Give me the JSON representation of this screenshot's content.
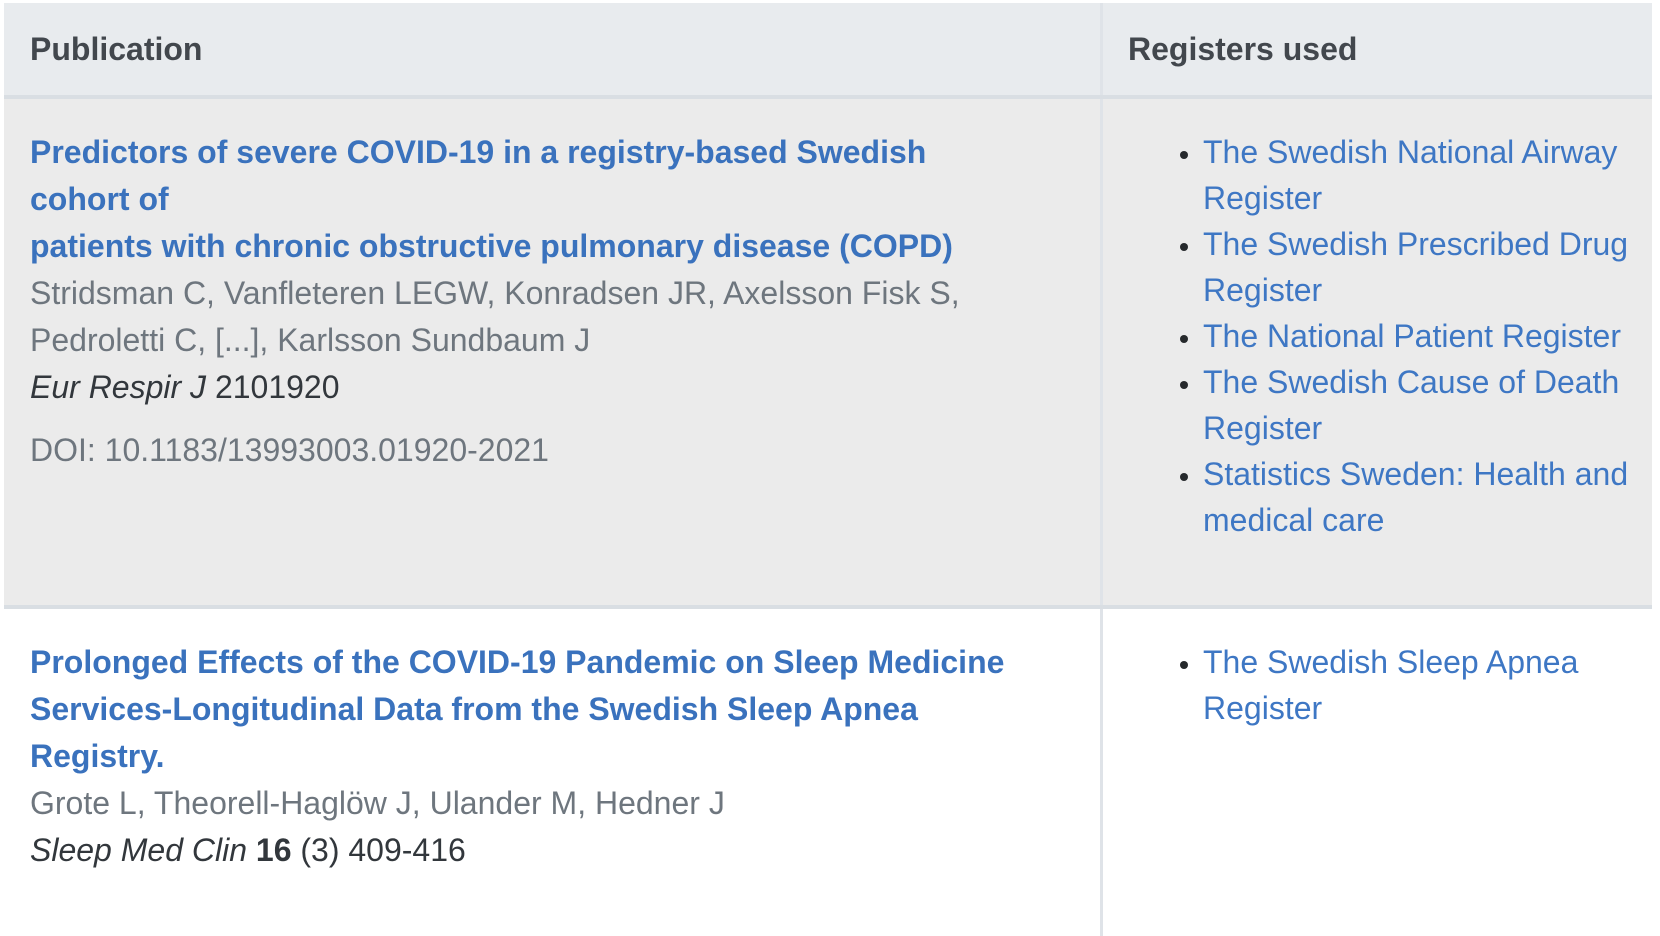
{
  "theme": {
    "header_bg": "#e8ebee",
    "row_stripe_bg": "#ebebeb",
    "row_white_bg": "#ffffff",
    "border_color": "#d9dee3",
    "title_link_color": "#3a72bd",
    "register_link_color": "#3e77c4",
    "muted_text_color": "#6e767e",
    "dark_text_color": "#32373c"
  },
  "table": {
    "columns": [
      {
        "label": "Publication"
      },
      {
        "label": "Registers used"
      }
    ],
    "rows": [
      {
        "title_lines": [
          "Predictors of severe COVID-19 in a registry-based Swedish cohort of",
          "patients with chronic obstructive pulmonary disease (COPD)"
        ],
        "authors": "Stridsman C, Vanfleteren LEGW, Konradsen JR, Axelsson Fisk S, Pedroletti C, [...], Karlsson Sundbaum J",
        "journal_name": "Eur Respir J",
        "journal_volume": "",
        "journal_rest": "2101920",
        "doi": "DOI: 10.1183/13993003.01920-2021",
        "registers": [
          "The Swedish National Airway Register",
          "The Swedish Prescribed Drug Register",
          "The National Patient Register",
          "The Swedish Cause of Death Register",
          "Statistics Sweden: Health and medical care"
        ]
      },
      {
        "title_lines": [
          "Prolonged Effects of the COVID-19 Pandemic on Sleep Medicine",
          "Services-Longitudinal Data from the Swedish Sleep Apnea Registry."
        ],
        "authors": "Grote L, Theorell-Haglöw J, Ulander M, Hedner J",
        "journal_name": "Sleep Med Clin",
        "journal_volume": "16",
        "journal_rest": "(3) 409-416",
        "doi": "",
        "registers": [
          "The Swedish Sleep Apnea Register"
        ]
      }
    ]
  }
}
